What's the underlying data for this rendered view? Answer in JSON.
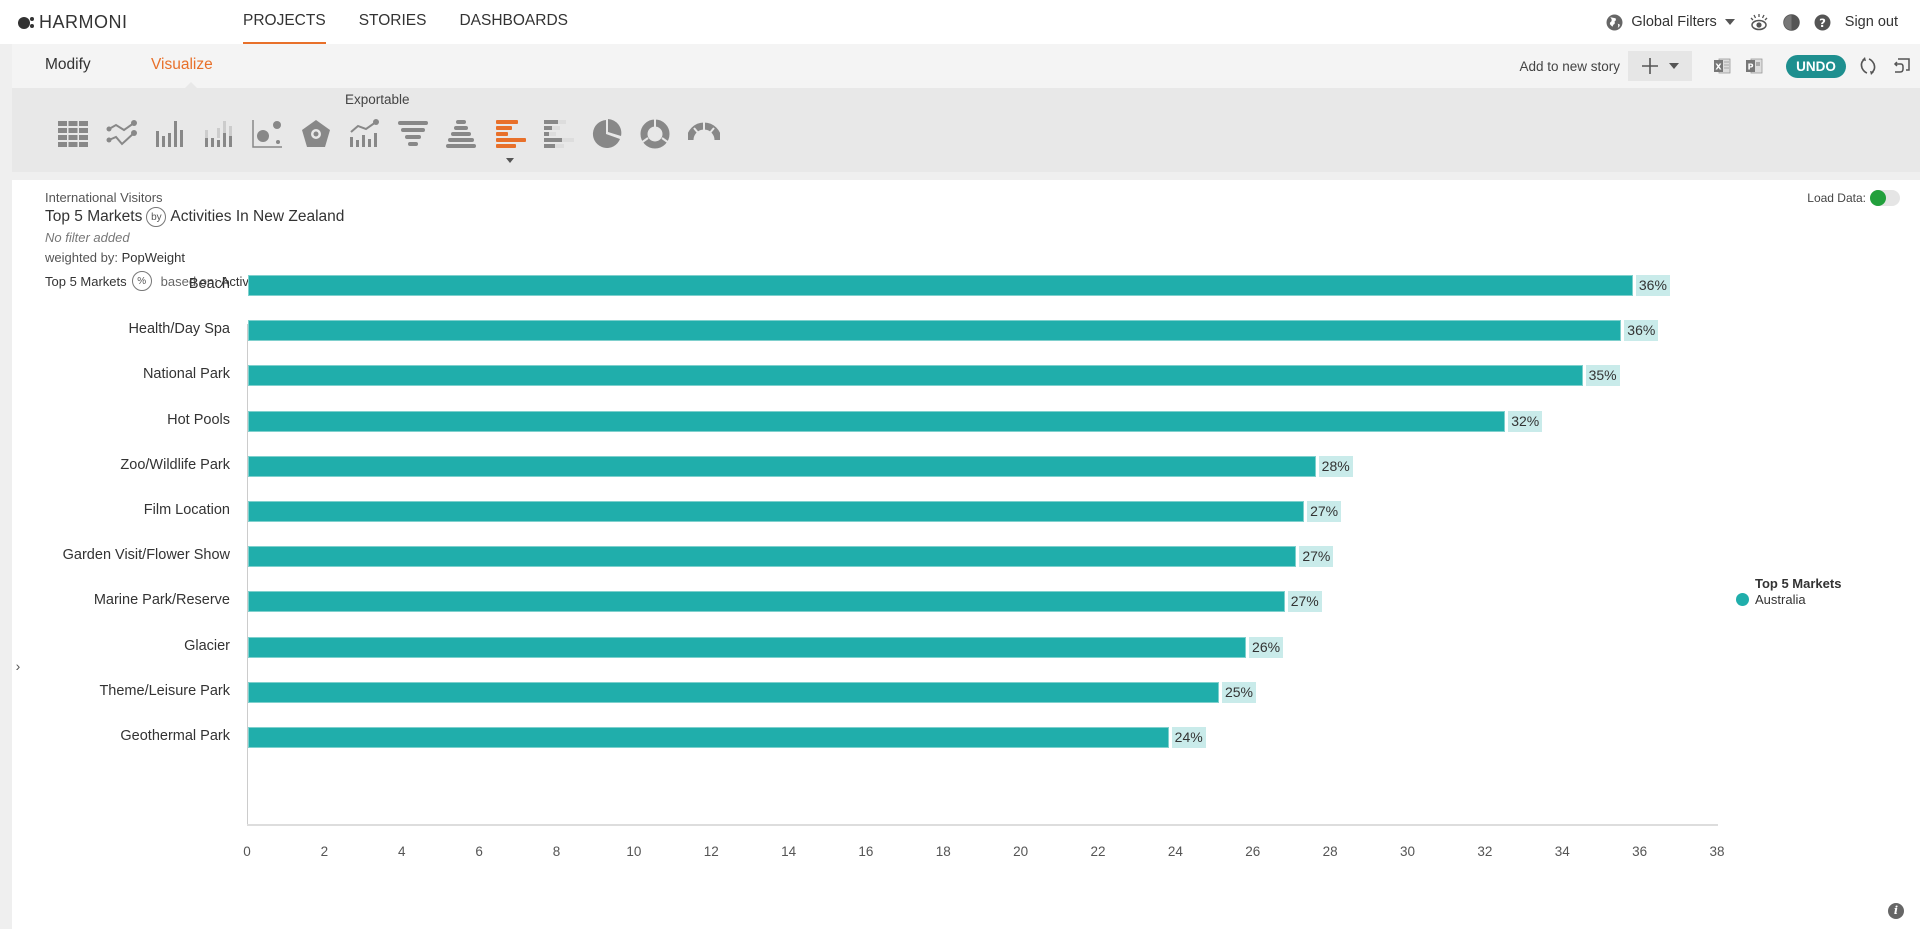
{
  "brand": {
    "name": "HARMONI"
  },
  "nav": {
    "items": [
      {
        "label": "PROJECTS",
        "active": true
      },
      {
        "label": "STORIES",
        "active": false
      },
      {
        "label": "DASHBOARDS",
        "active": false
      }
    ],
    "global_filters": "Global Filters",
    "sign_out": "Sign out"
  },
  "subnav": {
    "tabs": [
      {
        "label": "Modify",
        "active": false
      },
      {
        "label": "Visualize",
        "active": true
      }
    ],
    "add_to_story": "Add to new story",
    "undo": "UNDO"
  },
  "toolbar": {
    "exportable_label": "Exportable",
    "chart_types": [
      "table-icon",
      "line-chart-icon",
      "bar-chart-icon",
      "stacked-bar-chart-icon",
      "scatter-chart-icon",
      "radar-chart-icon",
      "combo-chart-icon",
      "funnel-chart-icon",
      "pyramid-chart-icon",
      "horizontal-bar-chart-icon",
      "stacked-horizontal-bar-chart-icon",
      "pie-chart-icon",
      "donut-chart-icon",
      "gauge-chart-icon"
    ],
    "selected": "horizontal-bar-chart-icon",
    "accent": "#e8702a"
  },
  "report": {
    "source": "International Visitors",
    "title_left": "Top 5 Markets",
    "title_connector": "by",
    "title_right": "Activities In New Zealand",
    "filter_text": "No filter added",
    "weighted_label": "weighted by:",
    "weighted_value": "PopWeight",
    "based_left": "Top 5 Markets",
    "based_badge": "%",
    "based_label": "based on:",
    "based_value": "Activities In New Zealand",
    "load_data_label": "Load Data:",
    "load_data_on": true
  },
  "chart_data": {
    "type": "bar",
    "orientation": "horizontal",
    "title": "Top 5 Markets by Activities In New Zealand",
    "xlabel": "",
    "ylabel": "",
    "xlim": [
      0,
      38
    ],
    "x_ticks": [
      0,
      2,
      4,
      6,
      8,
      10,
      12,
      14,
      16,
      18,
      20,
      22,
      24,
      26,
      28,
      30,
      32,
      34,
      36,
      38
    ],
    "grid": false,
    "legend_position": "right",
    "legend_title": "Top 5 Markets",
    "bar_color": "#20aeab",
    "categories": [
      "Beach",
      "Health/Day Spa",
      "National Park",
      "Hot Pools",
      "Zoo/Wildlife Park",
      "Film Location",
      "Garden Visit/Flower Show",
      "Marine Park/Reserve",
      "Glacier",
      "Theme/Leisure Park",
      "Geothermal Park"
    ],
    "series": [
      {
        "name": "Australia",
        "values": [
          35.8,
          35.5,
          34.5,
          32.5,
          27.6,
          27.3,
          27.1,
          26.8,
          25.8,
          25.1,
          23.8
        ],
        "labels": [
          "36%",
          "36%",
          "35%",
          "32%",
          "28%",
          "27%",
          "27%",
          "27%",
          "26%",
          "25%",
          "24%"
        ]
      }
    ]
  }
}
